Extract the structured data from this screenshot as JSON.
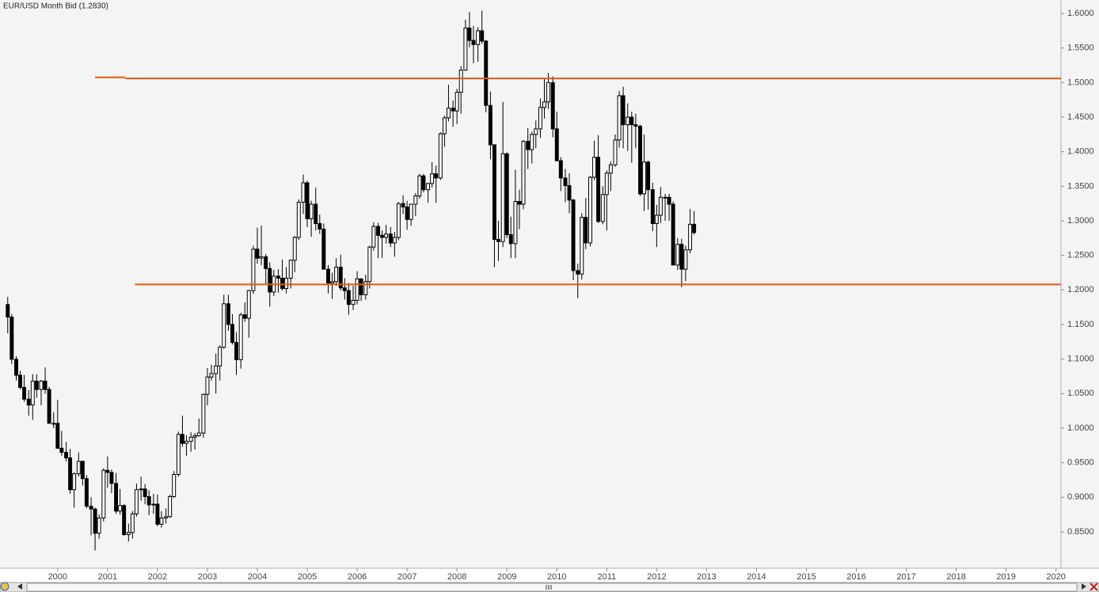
{
  "chart_data": {
    "type": "candlestick",
    "title": "EUR/USD Month Bid (1.2830)",
    "up_color": "#ffffff",
    "down_color": "#000000",
    "line_color": "#e05a10",
    "xlim": [
      1998.845,
      2020.1
    ],
    "xticks": [
      2000,
      2001,
      2002,
      2003,
      2004,
      2005,
      2006,
      2007,
      2008,
      2009,
      2010,
      2011,
      2012,
      2013,
      2014,
      2015,
      2016,
      2017,
      2018,
      2019,
      2020
    ],
    "ylim": [
      0.7973,
      1.6195
    ],
    "yticks": [
      {
        "value": 0.85,
        "label": "0.8500"
      },
      {
        "value": 0.9,
        "label": "0.9000"
      },
      {
        "value": 0.95,
        "label": "0.9500"
      },
      {
        "value": 1.0,
        "label": "1.0000"
      },
      {
        "value": 1.05,
        "label": "1.0500"
      },
      {
        "value": 1.1,
        "label": "1.1000"
      },
      {
        "value": 1.15,
        "label": "1.1500"
      },
      {
        "value": 1.2,
        "label": "1.2000"
      },
      {
        "value": 1.25,
        "label": "1.2500"
      },
      {
        "value": 1.3,
        "label": "1.3000"
      },
      {
        "value": 1.35,
        "label": "1.3500"
      },
      {
        "value": 1.4,
        "label": "1.4000"
      },
      {
        "value": 1.45,
        "label": "1.4500"
      },
      {
        "value": 1.5,
        "label": "1.5000"
      },
      {
        "value": 1.55,
        "label": "1.5500"
      },
      {
        "value": 1.6,
        "label": "1.6000"
      }
    ],
    "hlines": [
      {
        "y": 1.5075,
        "x": [
          2000.75,
          2001.35
        ]
      },
      {
        "y": 1.506,
        "x": [
          2001.35,
          2020.1
        ]
      },
      {
        "y": 1.208,
        "x": [
          2001.55,
          2020.1
        ]
      }
    ],
    "x": [
      1999,
      1999.08,
      1999.17,
      1999.25,
      1999.33,
      1999.42,
      1999.5,
      1999.58,
      1999.67,
      1999.75,
      1999.83,
      1999.92,
      2000,
      2000.08,
      2000.17,
      2000.25,
      2000.33,
      2000.42,
      2000.5,
      2000.58,
      2000.67,
      2000.75,
      2000.83,
      2000.92,
      2001,
      2001.08,
      2001.17,
      2001.25,
      2001.33,
      2001.42,
      2001.5,
      2001.58,
      2001.67,
      2001.75,
      2001.83,
      2001.92,
      2002,
      2002.08,
      2002.17,
      2002.25,
      2002.33,
      2002.42,
      2002.5,
      2002.58,
      2002.67,
      2002.75,
      2002.83,
      2002.92,
      2003,
      2003.08,
      2003.17,
      2003.25,
      2003.33,
      2003.42,
      2003.5,
      2003.58,
      2003.67,
      2003.75,
      2003.83,
      2003.92,
      2004,
      2004.08,
      2004.17,
      2004.25,
      2004.33,
      2004.42,
      2004.5,
      2004.58,
      2004.67,
      2004.75,
      2004.83,
      2004.92,
      2005,
      2005.08,
      2005.17,
      2005.25,
      2005.33,
      2005.42,
      2005.5,
      2005.58,
      2005.67,
      2005.75,
      2005.83,
      2005.92,
      2006,
      2006.08,
      2006.17,
      2006.25,
      2006.33,
      2006.42,
      2006.5,
      2006.58,
      2006.67,
      2006.75,
      2006.83,
      2006.92,
      2007,
      2007.08,
      2007.17,
      2007.25,
      2007.33,
      2007.42,
      2007.5,
      2007.58,
      2007.67,
      2007.75,
      2007.83,
      2007.92,
      2008,
      2008.08,
      2008.17,
      2008.25,
      2008.33,
      2008.42,
      2008.5,
      2008.58,
      2008.67,
      2008.75,
      2008.83,
      2008.92,
      2009,
      2009.08,
      2009.17,
      2009.25,
      2009.33,
      2009.42,
      2009.5,
      2009.58,
      2009.67,
      2009.75,
      2009.83,
      2009.92,
      2010,
      2010.08,
      2010.17,
      2010.25,
      2010.33,
      2010.42,
      2010.5,
      2010.58,
      2010.67,
      2010.75,
      2010.83,
      2010.92,
      2011,
      2011.08,
      2011.17,
      2011.25,
      2011.33,
      2011.42,
      2011.5,
      2011.58,
      2011.67,
      2011.75,
      2011.83,
      2011.92,
      2012,
      2012.08,
      2012.17,
      2012.25,
      2012.33,
      2012.42,
      2012.5,
      2012.58,
      2012.67,
      2012.75
    ],
    "ohlc": [
      [
        1.1789,
        1.19,
        1.1372,
        1.1608
      ],
      [
        1.1608,
        1.165,
        1.093,
        1.0996
      ],
      [
        1.0996,
        1.104,
        1.069,
        1.0766
      ],
      [
        1.0766,
        1.083,
        1.056,
        1.059
      ],
      [
        1.059,
        1.077,
        1.038,
        1.042
      ],
      [
        1.042,
        1.055,
        1.018,
        1.0335
      ],
      [
        1.0335,
        1.078,
        1.012,
        1.068
      ],
      [
        1.068,
        1.078,
        1.044,
        1.056
      ],
      [
        1.056,
        1.07,
        1.033,
        1.068
      ],
      [
        1.068,
        1.088,
        1.05,
        1.056
      ],
      [
        1.056,
        1.06,
        1.007,
        1.007
      ],
      [
        1.007,
        1.023,
        1.0,
        1.007
      ],
      [
        1.007,
        1.041,
        0.97,
        0.971
      ],
      [
        0.971,
        0.996,
        0.96,
        0.965
      ],
      [
        0.965,
        0.98,
        0.952,
        0.957
      ],
      [
        0.957,
        0.97,
        0.905,
        0.911
      ],
      [
        0.911,
        0.936,
        0.885,
        0.934
      ],
      [
        0.934,
        0.965,
        0.93,
        0.952
      ],
      [
        0.952,
        0.953,
        0.917,
        0.927
      ],
      [
        0.927,
        0.932,
        0.884,
        0.887
      ],
      [
        0.887,
        0.9,
        0.845,
        0.883
      ],
      [
        0.883,
        0.885,
        0.823,
        0.848
      ],
      [
        0.848,
        0.875,
        0.84,
        0.87
      ],
      [
        0.87,
        0.942,
        0.865,
        0.939
      ],
      [
        0.939,
        0.959,
        0.914,
        0.936
      ],
      [
        0.936,
        0.94,
        0.906,
        0.92
      ],
      [
        0.92,
        0.935,
        0.876,
        0.88
      ],
      [
        0.88,
        0.912,
        0.875,
        0.888
      ],
      [
        0.888,
        0.89,
        0.844,
        0.846
      ],
      [
        0.846,
        0.862,
        0.836,
        0.849
      ],
      [
        0.849,
        0.88,
        0.84,
        0.876
      ],
      [
        0.876,
        0.92,
        0.872,
        0.911
      ],
      [
        0.911,
        0.93,
        0.895,
        0.912
      ],
      [
        0.912,
        0.919,
        0.89,
        0.901
      ],
      [
        0.901,
        0.91,
        0.874,
        0.889
      ],
      [
        0.889,
        0.905,
        0.876,
        0.89
      ],
      [
        0.89,
        0.904,
        0.858,
        0.861
      ],
      [
        0.861,
        0.88,
        0.856,
        0.87
      ],
      [
        0.87,
        0.884,
        0.862,
        0.872
      ],
      [
        0.872,
        0.904,
        0.87,
        0.901
      ],
      [
        0.901,
        0.938,
        0.899,
        0.933
      ],
      [
        0.933,
        0.995,
        0.93,
        0.991
      ],
      [
        0.991,
        1.018,
        0.973,
        0.978
      ],
      [
        0.978,
        0.99,
        0.96,
        0.981
      ],
      [
        0.981,
        0.994,
        0.966,
        0.987
      ],
      [
        0.987,
        0.993,
        0.969,
        0.989
      ],
      [
        0.989,
        1.014,
        0.988,
        0.993
      ],
      [
        0.993,
        1.05,
        0.986,
        1.049
      ],
      [
        1.049,
        1.087,
        1.033,
        1.074
      ],
      [
        1.074,
        1.092,
        1.069,
        1.079
      ],
      [
        1.079,
        1.108,
        1.05,
        1.09
      ],
      [
        1.09,
        1.12,
        1.069,
        1.117
      ],
      [
        1.117,
        1.193,
        1.115,
        1.18
      ],
      [
        1.18,
        1.193,
        1.141,
        1.15
      ],
      [
        1.15,
        1.165,
        1.121,
        1.124
      ],
      [
        1.124,
        1.139,
        1.077,
        1.099
      ],
      [
        1.099,
        1.167,
        1.086,
        1.164
      ],
      [
        1.164,
        1.182,
        1.154,
        1.159
      ],
      [
        1.159,
        1.2,
        1.131,
        1.199
      ],
      [
        1.199,
        1.264,
        1.194,
        1.259
      ],
      [
        1.259,
        1.29,
        1.238,
        1.246
      ],
      [
        1.246,
        1.293,
        1.236,
        1.248
      ],
      [
        1.248,
        1.252,
        1.208,
        1.231
      ],
      [
        1.231,
        1.24,
        1.176,
        1.197
      ],
      [
        1.197,
        1.229,
        1.191,
        1.22
      ],
      [
        1.22,
        1.23,
        1.196,
        1.217
      ],
      [
        1.217,
        1.244,
        1.199,
        1.202
      ],
      [
        1.202,
        1.233,
        1.195,
        1.217
      ],
      [
        1.217,
        1.244,
        1.202,
        1.243
      ],
      [
        1.243,
        1.278,
        1.226,
        1.276
      ],
      [
        1.276,
        1.331,
        1.272,
        1.327
      ],
      [
        1.327,
        1.367,
        1.31,
        1.355
      ],
      [
        1.355,
        1.358,
        1.291,
        1.303
      ],
      [
        1.303,
        1.329,
        1.277,
        1.324
      ],
      [
        1.324,
        1.348,
        1.286,
        1.296
      ],
      [
        1.296,
        1.309,
        1.281,
        1.288
      ],
      [
        1.288,
        1.296,
        1.23,
        1.23
      ],
      [
        1.23,
        1.236,
        1.195,
        1.21
      ],
      [
        1.21,
        1.225,
        1.187,
        1.212
      ],
      [
        1.212,
        1.246,
        1.206,
        1.233
      ],
      [
        1.233,
        1.251,
        1.199,
        1.203
      ],
      [
        1.203,
        1.217,
        1.186,
        1.199
      ],
      [
        1.199,
        1.21,
        1.164,
        1.179
      ],
      [
        1.179,
        1.206,
        1.171,
        1.185
      ],
      [
        1.185,
        1.227,
        1.179,
        1.216
      ],
      [
        1.216,
        1.217,
        1.184,
        1.193
      ],
      [
        1.193,
        1.222,
        1.186,
        1.212
      ],
      [
        1.212,
        1.264,
        1.202,
        1.262
      ],
      [
        1.262,
        1.298,
        1.257,
        1.292
      ],
      [
        1.292,
        1.297,
        1.246,
        1.279
      ],
      [
        1.279,
        1.286,
        1.246,
        1.276
      ],
      [
        1.276,
        1.294,
        1.267,
        1.281
      ],
      [
        1.281,
        1.291,
        1.262,
        1.268
      ],
      [
        1.268,
        1.284,
        1.248,
        1.276
      ],
      [
        1.276,
        1.327,
        1.272,
        1.325
      ],
      [
        1.325,
        1.337,
        1.31,
        1.32
      ],
      [
        1.32,
        1.329,
        1.287,
        1.302
      ],
      [
        1.302,
        1.325,
        1.293,
        1.324
      ],
      [
        1.324,
        1.34,
        1.307,
        1.336
      ],
      [
        1.336,
        1.368,
        1.332,
        1.365
      ],
      [
        1.365,
        1.368,
        1.341,
        1.345
      ],
      [
        1.345,
        1.355,
        1.326,
        1.354
      ],
      [
        1.354,
        1.385,
        1.348,
        1.368
      ],
      [
        1.368,
        1.38,
        1.326,
        1.362
      ],
      [
        1.362,
        1.428,
        1.359,
        1.426
      ],
      [
        1.426,
        1.452,
        1.407,
        1.449
      ],
      [
        1.449,
        1.497,
        1.444,
        1.463
      ],
      [
        1.463,
        1.474,
        1.436,
        1.459
      ],
      [
        1.459,
        1.491,
        1.44,
        1.486
      ],
      [
        1.486,
        1.524,
        1.455,
        1.518
      ],
      [
        1.518,
        1.591,
        1.517,
        1.579
      ],
      [
        1.579,
        1.602,
        1.551,
        1.561
      ],
      [
        1.561,
        1.582,
        1.528,
        1.555
      ],
      [
        1.555,
        1.58,
        1.53,
        1.575
      ],
      [
        1.575,
        1.604,
        1.556,
        1.56
      ],
      [
        1.56,
        1.562,
        1.457,
        1.467
      ],
      [
        1.467,
        1.487,
        1.389,
        1.41
      ],
      [
        1.41,
        1.41,
        1.233,
        1.273
      ],
      [
        1.273,
        1.3,
        1.242,
        1.27
      ],
      [
        1.27,
        1.472,
        1.262,
        1.397
      ],
      [
        1.397,
        1.399,
        1.275,
        1.28
      ],
      [
        1.28,
        1.306,
        1.246,
        1.267
      ],
      [
        1.267,
        1.374,
        1.246,
        1.328
      ],
      [
        1.328,
        1.345,
        1.288,
        1.324
      ],
      [
        1.324,
        1.417,
        1.317,
        1.415
      ],
      [
        1.415,
        1.434,
        1.375,
        1.403
      ],
      [
        1.403,
        1.429,
        1.383,
        1.425
      ],
      [
        1.425,
        1.445,
        1.405,
        1.433
      ],
      [
        1.433,
        1.477,
        1.42,
        1.464
      ],
      [
        1.464,
        1.506,
        1.448,
        1.472
      ],
      [
        1.472,
        1.514,
        1.462,
        1.5
      ],
      [
        1.5,
        1.509,
        1.421,
        1.433
      ],
      [
        1.433,
        1.458,
        1.386,
        1.387
      ],
      [
        1.387,
        1.392,
        1.343,
        1.362
      ],
      [
        1.362,
        1.375,
        1.327,
        1.351
      ],
      [
        1.351,
        1.369,
        1.311,
        1.33
      ],
      [
        1.33,
        1.332,
        1.214,
        1.228
      ],
      [
        1.228,
        1.238,
        1.188,
        1.223
      ],
      [
        1.223,
        1.311,
        1.215,
        1.305
      ],
      [
        1.305,
        1.333,
        1.259,
        1.268
      ],
      [
        1.268,
        1.365,
        1.263,
        1.363
      ],
      [
        1.363,
        1.416,
        1.359,
        1.392
      ],
      [
        1.392,
        1.424,
        1.297,
        1.299
      ],
      [
        1.299,
        1.35,
        1.295,
        1.338
      ],
      [
        1.338,
        1.373,
        1.286,
        1.369
      ],
      [
        1.369,
        1.386,
        1.343,
        1.381
      ],
      [
        1.381,
        1.425,
        1.378,
        1.417
      ],
      [
        1.417,
        1.488,
        1.406,
        1.481
      ],
      [
        1.481,
        1.494,
        1.405,
        1.439
      ],
      [
        1.439,
        1.47,
        1.401,
        1.45
      ],
      [
        1.45,
        1.458,
        1.384,
        1.439
      ],
      [
        1.439,
        1.455,
        1.405,
        1.437
      ],
      [
        1.437,
        1.439,
        1.336,
        1.339
      ],
      [
        1.339,
        1.425,
        1.314,
        1.385
      ],
      [
        1.385,
        1.387,
        1.316,
        1.345
      ],
      [
        1.345,
        1.355,
        1.285,
        1.296
      ],
      [
        1.296,
        1.323,
        1.262,
        1.308
      ],
      [
        1.308,
        1.349,
        1.297,
        1.334
      ],
      [
        1.334,
        1.339,
        1.3,
        1.334
      ],
      [
        1.334,
        1.339,
        1.3,
        1.324
      ],
      [
        1.324,
        1.328,
        1.236,
        1.236
      ],
      [
        1.236,
        1.275,
        1.229,
        1.266
      ],
      [
        1.266,
        1.274,
        1.204,
        1.23
      ],
      [
        1.23,
        1.264,
        1.213,
        1.258
      ],
      [
        1.258,
        1.317,
        1.253,
        1.295
      ],
      [
        1.295,
        1.314,
        1.28,
        1.283
      ]
    ]
  }
}
